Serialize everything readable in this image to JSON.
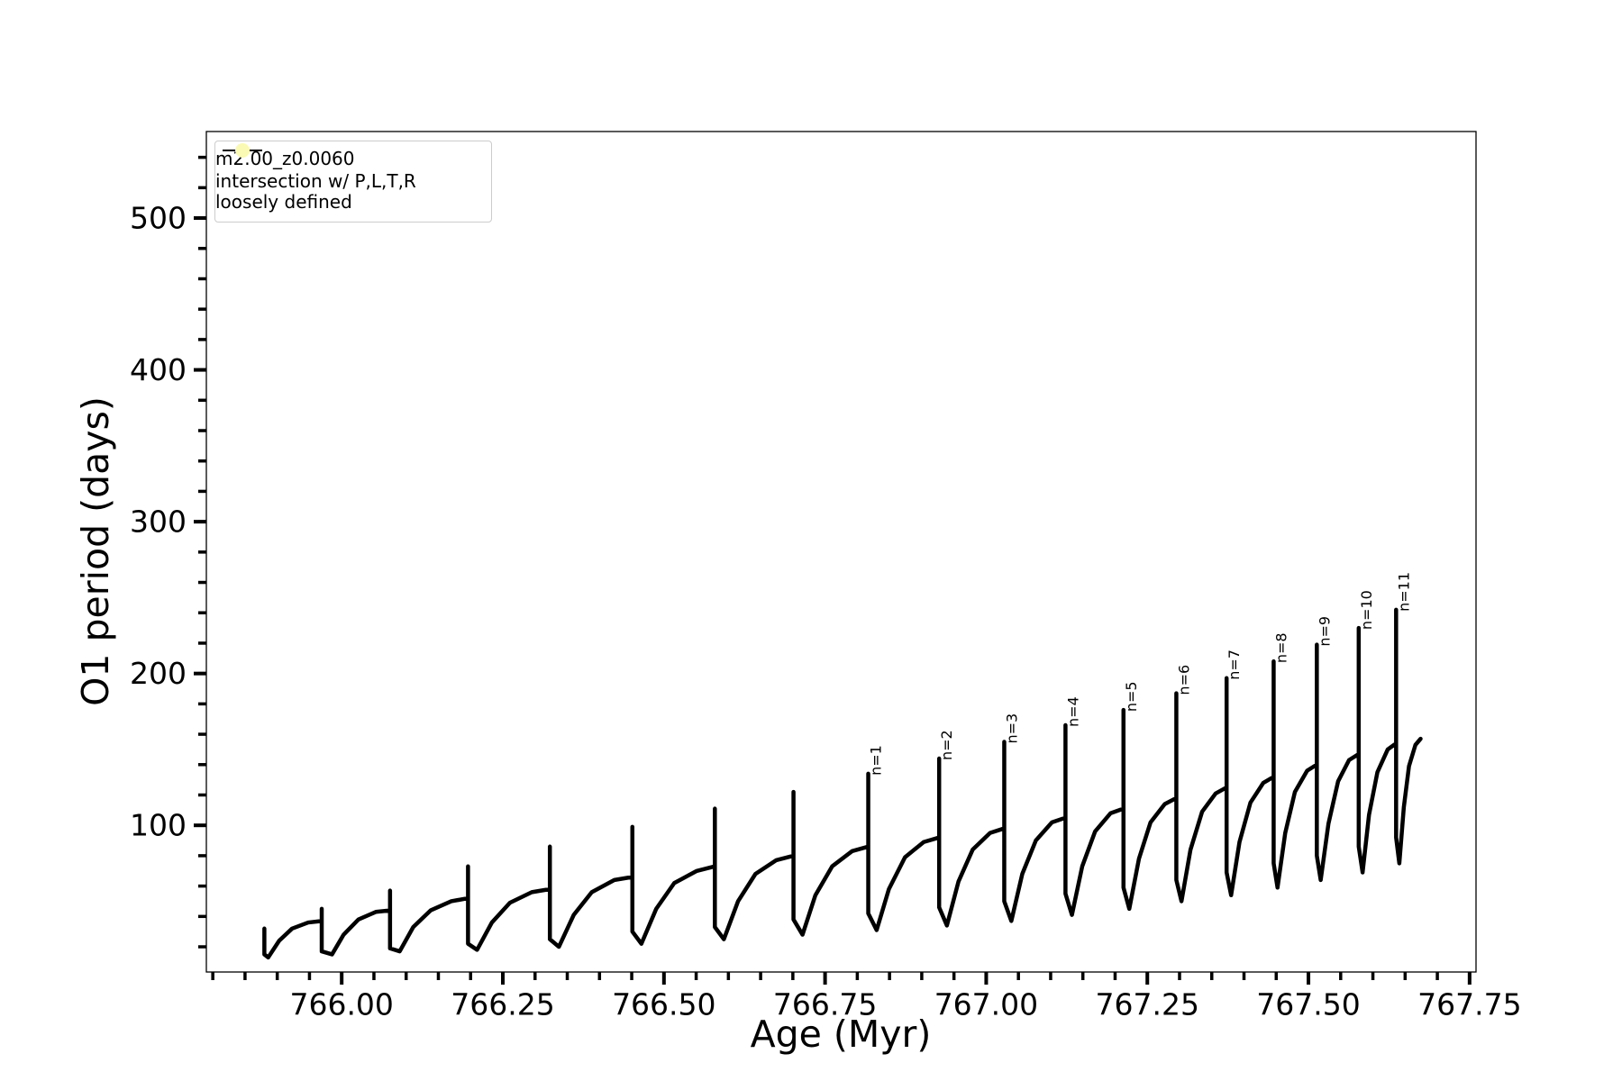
{
  "chart_data": {
    "type": "line",
    "xlabel": "Age (Myr)",
    "ylabel": "O1 period (days)",
    "xlim": [
      765.79,
      767.76
    ],
    "ylim": [
      3.4,
      557
    ],
    "xticks": [
      {
        "value": 766,
        "label": "766.00"
      },
      {
        "value": 766.25,
        "label": "766.25"
      },
      {
        "value": 766.5,
        "label": "766.50"
      },
      {
        "value": 766.75,
        "label": "766.75"
      },
      {
        "value": 767,
        "label": "767.00"
      },
      {
        "value": 767.25,
        "label": "767.25"
      },
      {
        "value": 767.5,
        "label": "767.50"
      },
      {
        "value": 767.75,
        "label": "767.75"
      }
    ],
    "yticks": [
      100,
      200,
      300,
      400,
      500
    ],
    "xminor_ticks": [
      765.8,
      765.85,
      765.9,
      765.95,
      766,
      766.05,
      766.1,
      766.15,
      766.2,
      766.25,
      766.3,
      766.35,
      766.4,
      766.45,
      766.5,
      766.55,
      766.6,
      766.65,
      766.7,
      766.75,
      766.8,
      766.85,
      766.9,
      766.95,
      767,
      767.05,
      767.1,
      767.15,
      767.2,
      767.25,
      767.3,
      767.35,
      767.4,
      767.45,
      767.5,
      767.55,
      767.6,
      767.65,
      767.7,
      767.75
    ],
    "yminor_ticks": [
      20,
      40,
      60,
      80,
      100,
      120,
      140,
      160,
      180,
      200,
      220,
      240,
      260,
      280,
      300,
      320,
      340,
      360,
      380,
      400,
      420,
      440,
      460,
      480,
      500,
      520,
      540
    ],
    "legend": "upper left",
    "series": [
      {
        "name": "m2.00_z0.0060",
        "color": "#000000",
        "marker": "dot",
        "x": [
          765.88,
          765.88,
          765.88,
          765.886,
          765.903,
          765.923,
          765.948,
          765.969,
          765.969,
          765.969,
          765.985,
          766.003,
          766.026,
          766.053,
          766.075,
          766.075,
          766.075,
          766.09,
          766.111,
          766.138,
          766.17,
          766.196,
          766.196,
          766.196,
          766.21,
          766.233,
          766.261,
          766.295,
          766.323,
          766.323,
          766.323,
          766.337,
          766.36,
          766.388,
          766.423,
          766.451,
          766.451,
          766.451,
          766.465,
          766.488,
          766.516,
          766.551,
          766.579,
          766.579,
          766.579,
          766.593,
          766.615,
          766.642,
          766.674,
          766.701,
          766.701,
          766.701,
          766.715,
          766.735,
          766.761,
          766.792,
          766.817,
          766.817,
          766.817,
          766.83,
          766.849,
          766.874,
          766.903,
          766.927,
          766.927,
          766.927,
          766.939,
          766.957,
          766.979,
          767.006,
          767.028,
          767.028,
          767.028,
          767.039,
          767.056,
          767.077,
          767.102,
          767.123,
          767.123,
          767.123,
          767.133,
          767.149,
          767.169,
          767.193,
          767.213,
          767.213,
          767.213,
          767.222,
          767.237,
          767.255,
          767.277,
          767.295,
          767.295,
          767.295,
          767.303,
          767.317,
          767.335,
          767.356,
          767.373,
          767.373,
          767.373,
          767.38,
          767.393,
          767.41,
          767.43,
          767.446,
          767.446,
          767.446,
          767.452,
          767.464,
          767.479,
          767.498,
          767.513,
          767.513,
          767.513,
          767.519,
          767.531,
          767.546,
          767.563,
          767.578,
          767.578,
          767.578,
          767.584,
          767.594,
          767.607,
          767.623,
          767.636,
          767.636,
          767.636,
          767.641,
          767.648,
          767.656,
          767.666,
          767.674
        ],
        "values": [
          25,
          32,
          15,
          13,
          24,
          32,
          36,
          37,
          45,
          17,
          15,
          28,
          38,
          43,
          44,
          57,
          19,
          17,
          33,
          44,
          50,
          52,
          73,
          22,
          18,
          36,
          49,
          56,
          58,
          86,
          25,
          20,
          41,
          56,
          64,
          66,
          99,
          30,
          22,
          45,
          62,
          70,
          73,
          111,
          33,
          25,
          50,
          68,
          77,
          80,
          122,
          38,
          28,
          54,
          73,
          83,
          86,
          134,
          42,
          31,
          58,
          79,
          89,
          92,
          144,
          46,
          34,
          63,
          84,
          95,
          98,
          155,
          50,
          37,
          68,
          90,
          102,
          105,
          166,
          55,
          41,
          73,
          96,
          108,
          111,
          176,
          59,
          45,
          78,
          102,
          114,
          118,
          187,
          64,
          50,
          84,
          109,
          121,
          125,
          197,
          69,
          54,
          89,
          115,
          128,
          132,
          208,
          75,
          59,
          95,
          122,
          136,
          140,
          219,
          80,
          64,
          101,
          129,
          143,
          147,
          230,
          86,
          69,
          107,
          135,
          150,
          154,
          242,
          92,
          75,
          112,
          139,
          153,
          157
        ]
      },
      {
        "name": "intersection w/ P,L,T,R\nloosely defined",
        "color": "#fafab4",
        "marker": "circle",
        "x": [],
        "values": []
      }
    ],
    "annotations": [
      "n=1",
      "n=2",
      "n=3",
      "n=4",
      "n=5",
      "n=6",
      "n=7",
      "n=8",
      "n=9",
      "n=10",
      "n=11"
    ]
  }
}
